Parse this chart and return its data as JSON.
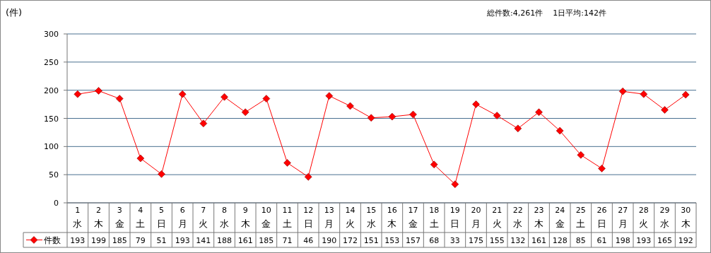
{
  "chart_data": {
    "type": "line",
    "ylabel": "(件)",
    "annotations": [
      "総件数:4,261件",
      "1日平均:142件"
    ],
    "categories": [
      "1\n水",
      "2\n木",
      "3\n金",
      "4\n土",
      "5\n日",
      "6\n月",
      "7\n火",
      "8\n水",
      "9\n木",
      "10\n金",
      "11\n土",
      "12\n日",
      "13\n月",
      "14\n火",
      "15\n水",
      "16\n木",
      "17\n金",
      "18\n土",
      "19\n日",
      "20\n月",
      "21\n火",
      "22\n水",
      "23\n木",
      "24\n金",
      "25\n土",
      "26\n日",
      "27\n月",
      "28\n火",
      "29\n水",
      "30\n木"
    ],
    "series": [
      {
        "name": "件数",
        "color": "#ff0000",
        "values": [
          193,
          199,
          185,
          79,
          51,
          193,
          141,
          188,
          161,
          185,
          71,
          46,
          190,
          172,
          151,
          153,
          157,
          68,
          33,
          175,
          155,
          132,
          161,
          128,
          85,
          61,
          198,
          193,
          165,
          192
        ]
      }
    ],
    "ylim": [
      0,
      300
    ],
    "yticks": [
      0,
      50,
      100,
      150,
      200,
      250,
      300
    ],
    "grid": "y",
    "marker": "diamond",
    "data_labels": true,
    "legend": "bottom left"
  }
}
